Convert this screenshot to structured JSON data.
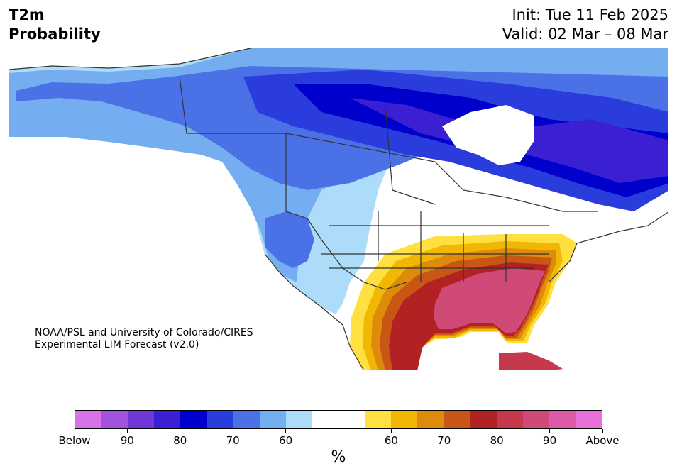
{
  "header": {
    "variable": "T2m",
    "product": "Probability",
    "init": "Init: Tue 11 Feb 2025",
    "valid": "Valid: 02 Mar – 08 Mar"
  },
  "credit": {
    "line1": "NOAA/PSL and University of Colorado/CIRES",
    "line2": "Experimental LIM Forecast (v2.0)"
  },
  "colorbar": {
    "colors": [
      "#d872e8",
      "#a352de",
      "#7137d6",
      "#3b20d3",
      "#0000cc",
      "#2a3cdc",
      "#4a72e6",
      "#74aef0",
      "#acdcfa",
      "#ffffff",
      "#ffffff",
      "#ffe040",
      "#f2b705",
      "#de8a0a",
      "#c85614",
      "#b22222",
      "#c43a4c",
      "#d04a78",
      "#dc5aa8",
      "#e870d8"
    ],
    "labels": [
      "Below",
      "90",
      "80",
      "70",
      "60",
      "60",
      "70",
      "80",
      "90",
      "Above"
    ],
    "unit": "%"
  },
  "map": {
    "description_colors": {
      "land": "#ffffff",
      "lakes": "#ffffff",
      "border": "#333333"
    }
  }
}
